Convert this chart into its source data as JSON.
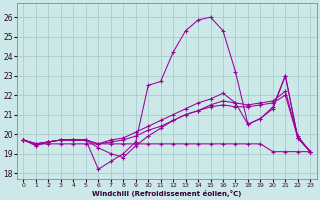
{
  "xlabel": "Windchill (Refroidissement éolien,°C)",
  "bg_color": "#cce8e8",
  "grid_color": "#aacccc",
  "line_color": "#990099",
  "xlim": [
    -0.5,
    23.5
  ],
  "ylim": [
    17.7,
    26.7
  ],
  "yticks": [
    18,
    19,
    20,
    21,
    22,
    23,
    24,
    25,
    26
  ],
  "xticks": [
    0,
    1,
    2,
    3,
    4,
    5,
    6,
    7,
    8,
    9,
    10,
    11,
    12,
    13,
    14,
    15,
    16,
    17,
    18,
    19,
    20,
    21,
    22,
    23
  ],
  "lines": [
    [
      19.7,
      19.4,
      19.6,
      19.7,
      19.7,
      19.7,
      18.2,
      18.6,
      19.0,
      19.6,
      22.5,
      22.7,
      24.2,
      25.3,
      25.85,
      26.0,
      25.3,
      23.2,
      20.5,
      20.8,
      21.4,
      23.0,
      19.8,
      19.1
    ],
    [
      19.7,
      19.5,
      19.5,
      19.5,
      19.5,
      19.5,
      19.5,
      19.5,
      19.5,
      19.5,
      19.5,
      19.5,
      19.5,
      19.5,
      19.5,
      19.5,
      19.5,
      19.5,
      19.5,
      19.5,
      19.1,
      19.1,
      19.1,
      19.1
    ],
    [
      19.7,
      19.5,
      19.6,
      19.7,
      19.7,
      19.7,
      19.5,
      19.6,
      19.7,
      19.9,
      20.2,
      20.4,
      20.7,
      21.0,
      21.2,
      21.4,
      21.5,
      21.4,
      21.4,
      21.5,
      21.6,
      22.0,
      19.8,
      19.1
    ],
    [
      19.7,
      19.5,
      19.6,
      19.7,
      19.7,
      19.7,
      19.5,
      19.7,
      19.8,
      20.1,
      20.4,
      20.7,
      21.0,
      21.3,
      21.6,
      21.8,
      22.1,
      21.6,
      21.5,
      21.6,
      21.7,
      22.2,
      19.9,
      19.1
    ],
    [
      19.7,
      19.5,
      19.6,
      19.7,
      19.7,
      19.7,
      19.3,
      19.0,
      18.8,
      19.4,
      19.9,
      20.3,
      20.7,
      21.0,
      21.2,
      21.5,
      21.7,
      21.6,
      20.5,
      20.8,
      21.3,
      23.0,
      19.8,
      19.1
    ]
  ]
}
